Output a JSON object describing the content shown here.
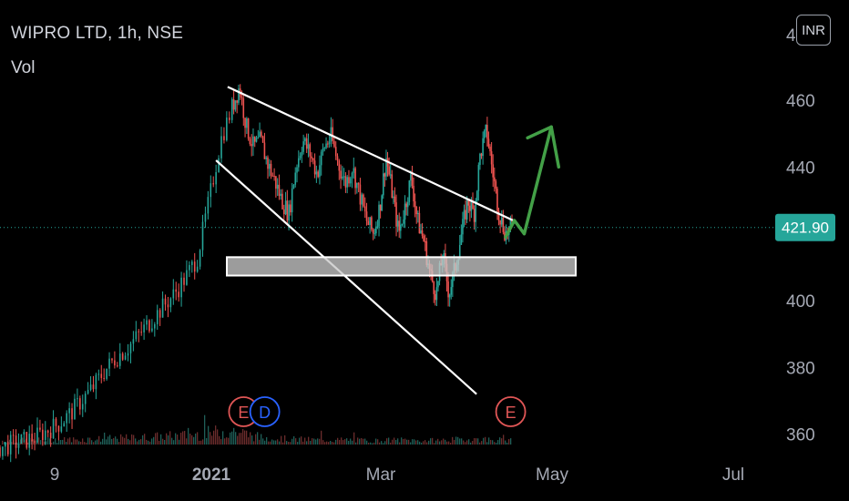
{
  "header": {
    "title": "WIPRO LTD, 1h, NSE",
    "volume_label": "Vol",
    "currency_button": "INR"
  },
  "colors": {
    "background": "#000000",
    "up": "#26a69a",
    "down": "#ef5350",
    "trendline": "#ffffff",
    "arrow": "#43a047",
    "price_line": "#26a69a"
  },
  "chart_data": {
    "type": "candlestick",
    "symbol": "WIPRO LTD",
    "interval": "1h",
    "exchange": "NSE",
    "y_ticks": [
      {
        "label": "460",
        "value": 460
      },
      {
        "label": "440",
        "value": 440
      },
      {
        "label": "400",
        "value": 400
      },
      {
        "label": "380",
        "value": 380
      },
      {
        "label": "360",
        "value": 360
      }
    ],
    "y_tick_partial": "4",
    "x_ticks": [
      {
        "label": "9",
        "bold": false
      },
      {
        "label": "2021",
        "bold": true
      },
      {
        "label": "Mar",
        "bold": false
      },
      {
        "label": "May",
        "bold": false
      },
      {
        "label": "Jul",
        "bold": false
      }
    ],
    "last_price": {
      "label": "421.90",
      "value": 421.9
    },
    "ylim": [
      357,
      479
    ],
    "price_path": [
      [
        0.0,
        356
      ],
      [
        0.05,
        357
      ],
      [
        0.1,
        358
      ],
      [
        0.15,
        359
      ],
      [
        0.2,
        361
      ],
      [
        0.25,
        363
      ],
      [
        0.3,
        366
      ],
      [
        0.35,
        370
      ],
      [
        0.4,
        374
      ],
      [
        0.45,
        379
      ],
      [
        0.5,
        383
      ],
      [
        0.55,
        386
      ],
      [
        0.6,
        390
      ],
      [
        0.65,
        394
      ],
      [
        0.7,
        398
      ],
      [
        0.75,
        402
      ],
      [
        0.8,
        407
      ],
      [
        0.85,
        413
      ],
      [
        0.9,
        430
      ],
      [
        0.95,
        448
      ],
      [
        1.0,
        458
      ],
      [
        1.05,
        464
      ],
      [
        1.1,
        452
      ],
      [
        1.15,
        446
      ],
      [
        1.2,
        448
      ],
      [
        1.25,
        441
      ],
      [
        1.3,
        436
      ],
      [
        1.35,
        430
      ],
      [
        1.4,
        426
      ],
      [
        1.45,
        440
      ],
      [
        1.5,
        448
      ],
      [
        1.55,
        444
      ],
      [
        1.6,
        438
      ],
      [
        1.65,
        446
      ],
      [
        1.7,
        449
      ],
      [
        1.75,
        441
      ],
      [
        1.8,
        435
      ],
      [
        1.85,
        440
      ],
      [
        1.9,
        432
      ],
      [
        1.95,
        424
      ],
      [
        2.0,
        420
      ],
      [
        2.05,
        428
      ],
      [
        2.1,
        443
      ],
      [
        2.15,
        432
      ],
      [
        2.2,
        420
      ],
      [
        2.25,
        428
      ],
      [
        2.3,
        437
      ],
      [
        2.35,
        424
      ],
      [
        2.4,
        418
      ],
      [
        2.45,
        408
      ],
      [
        2.5,
        402
      ],
      [
        2.55,
        414
      ],
      [
        2.6,
        402
      ],
      [
        2.65,
        410
      ],
      [
        2.7,
        420
      ],
      [
        2.75,
        430
      ],
      [
        2.8,
        426
      ],
      [
        2.85,
        444
      ],
      [
        2.9,
        451
      ],
      [
        2.95,
        438
      ],
      [
        3.0,
        426
      ],
      [
        3.05,
        420
      ],
      [
        3.1,
        422
      ]
    ],
    "path_x_range": [
      0,
      3.1
    ],
    "volume_profile": [
      [
        0.0,
        0.05
      ],
      [
        0.2,
        0.06
      ],
      [
        0.4,
        0.07
      ],
      [
        0.6,
        0.09
      ],
      [
        0.8,
        0.12
      ],
      [
        1.0,
        0.18
      ],
      [
        1.2,
        0.09
      ],
      [
        1.4,
        0.07
      ],
      [
        1.6,
        0.06
      ],
      [
        1.8,
        0.06
      ],
      [
        2.0,
        0.05
      ],
      [
        2.2,
        0.06
      ],
      [
        2.4,
        0.05
      ],
      [
        2.6,
        0.06
      ],
      [
        2.8,
        0.07
      ],
      [
        3.0,
        0.06
      ],
      [
        3.1,
        0.05
      ]
    ],
    "annotations": {
      "channel_upper": [
        [
          0.98,
          464
        ],
        [
          1.73,
          431
        ],
        [
          2.61,
          398
        ],
        [
          3.11,
          424
        ]
      ],
      "channel_lower": [
        [
          0.93,
          442
        ],
        [
          1.42,
          420
        ],
        [
          2.61,
          380
        ],
        [
          2.82,
          372
        ]
      ],
      "support_zone": [
        407.5,
        413
      ],
      "arrow_path": [
        [
          3.05,
          419
        ],
        [
          3.12,
          424
        ],
        [
          3.2,
          420
        ],
        [
          3.42,
          452
        ],
        [
          3.48,
          440
        ]
      ],
      "events": [
        {
          "label": "E",
          "kind": "earnings",
          "x": 1.08
        },
        {
          "label": "D",
          "kind": "dividend",
          "x": 1.23
        },
        {
          "label": "E",
          "kind": "earnings",
          "x": 3.09
        }
      ]
    }
  }
}
